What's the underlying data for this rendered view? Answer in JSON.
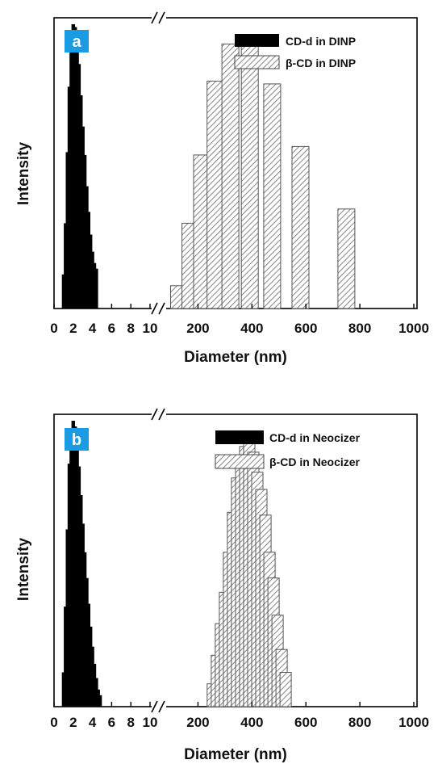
{
  "chart_data": [
    {
      "type": "bar",
      "panel_label": "a",
      "ylabel": "Intensity",
      "xlabel": "Diameter (nm)",
      "x_axis": "broken",
      "x_ticks_left": [
        "0",
        "2",
        "4",
        "6",
        "8",
        "10"
      ],
      "x_ticks_right": [
        "200",
        "400",
        "600",
        "800",
        "1000"
      ],
      "xlim_left": [
        0,
        10
      ],
      "xlim_right": [
        100,
        1000
      ],
      "ylim": [
        0,
        1
      ],
      "legend_position": "top-right",
      "series": [
        {
          "name": "CD-d in DINP",
          "color": "#000000",
          "fill": "solid",
          "segment": "left",
          "x": [
            1.0,
            1.2,
            1.4,
            1.6,
            1.8,
            2.0,
            2.2,
            2.4,
            2.6,
            2.8,
            3.0,
            3.2,
            3.4,
            3.6,
            3.8,
            4.0,
            4.2,
            4.4
          ],
          "values": [
            0.12,
            0.3,
            0.55,
            0.78,
            0.93,
            1.0,
            0.99,
            0.94,
            0.86,
            0.75,
            0.64,
            0.54,
            0.43,
            0.34,
            0.26,
            0.2,
            0.16,
            0.14
          ]
        },
        {
          "name": "β-CD in DINP",
          "color": "#777777",
          "fill": "hatched",
          "segment": "right",
          "x": [
            130,
            172,
            215,
            265,
            320,
            392,
            475,
            580,
            750
          ],
          "values": [
            0.08,
            0.3,
            0.54,
            0.8,
            0.93,
            0.93,
            0.79,
            0.57,
            0.35
          ]
        }
      ]
    },
    {
      "type": "bar",
      "panel_label": "b",
      "ylabel": "Intensity",
      "xlabel": "Diameter (nm)",
      "x_axis": "broken",
      "x_ticks_left": [
        "0",
        "2",
        "4",
        "6",
        "8",
        "10"
      ],
      "x_ticks_right": [
        "200",
        "400",
        "600",
        "800",
        "1000"
      ],
      "xlim_left": [
        0,
        10
      ],
      "xlim_right": [
        100,
        1000
      ],
      "ylim": [
        0,
        1
      ],
      "legend_position": "top-right",
      "series": [
        {
          "name": "CD-d in Neocizer",
          "color": "#000000",
          "fill": "solid",
          "segment": "left",
          "x": [
            1.0,
            1.2,
            1.4,
            1.6,
            1.8,
            2.0,
            2.2,
            2.4,
            2.6,
            2.8,
            3.0,
            3.2,
            3.4,
            3.6,
            3.8,
            4.0,
            4.2,
            4.4,
            4.6,
            4.8
          ],
          "values": [
            0.12,
            0.35,
            0.62,
            0.85,
            0.97,
            1.0,
            0.98,
            0.92,
            0.84,
            0.74,
            0.64,
            0.54,
            0.45,
            0.36,
            0.28,
            0.21,
            0.15,
            0.1,
            0.06,
            0.04
          ]
        },
        {
          "name": "β-CD in Neocizer",
          "color": "#777777",
          "fill": "hatched",
          "segment": "right",
          "x": [
            255,
            270,
            285,
            300,
            315,
            330,
            345,
            360,
            375,
            390,
            405,
            420,
            435,
            450,
            465,
            480,
            495,
            510,
            525
          ],
          "values": [
            0.08,
            0.18,
            0.29,
            0.4,
            0.54,
            0.68,
            0.8,
            0.88,
            0.91,
            0.93,
            0.89,
            0.82,
            0.76,
            0.67,
            0.54,
            0.45,
            0.32,
            0.2,
            0.12
          ]
        }
      ]
    }
  ]
}
